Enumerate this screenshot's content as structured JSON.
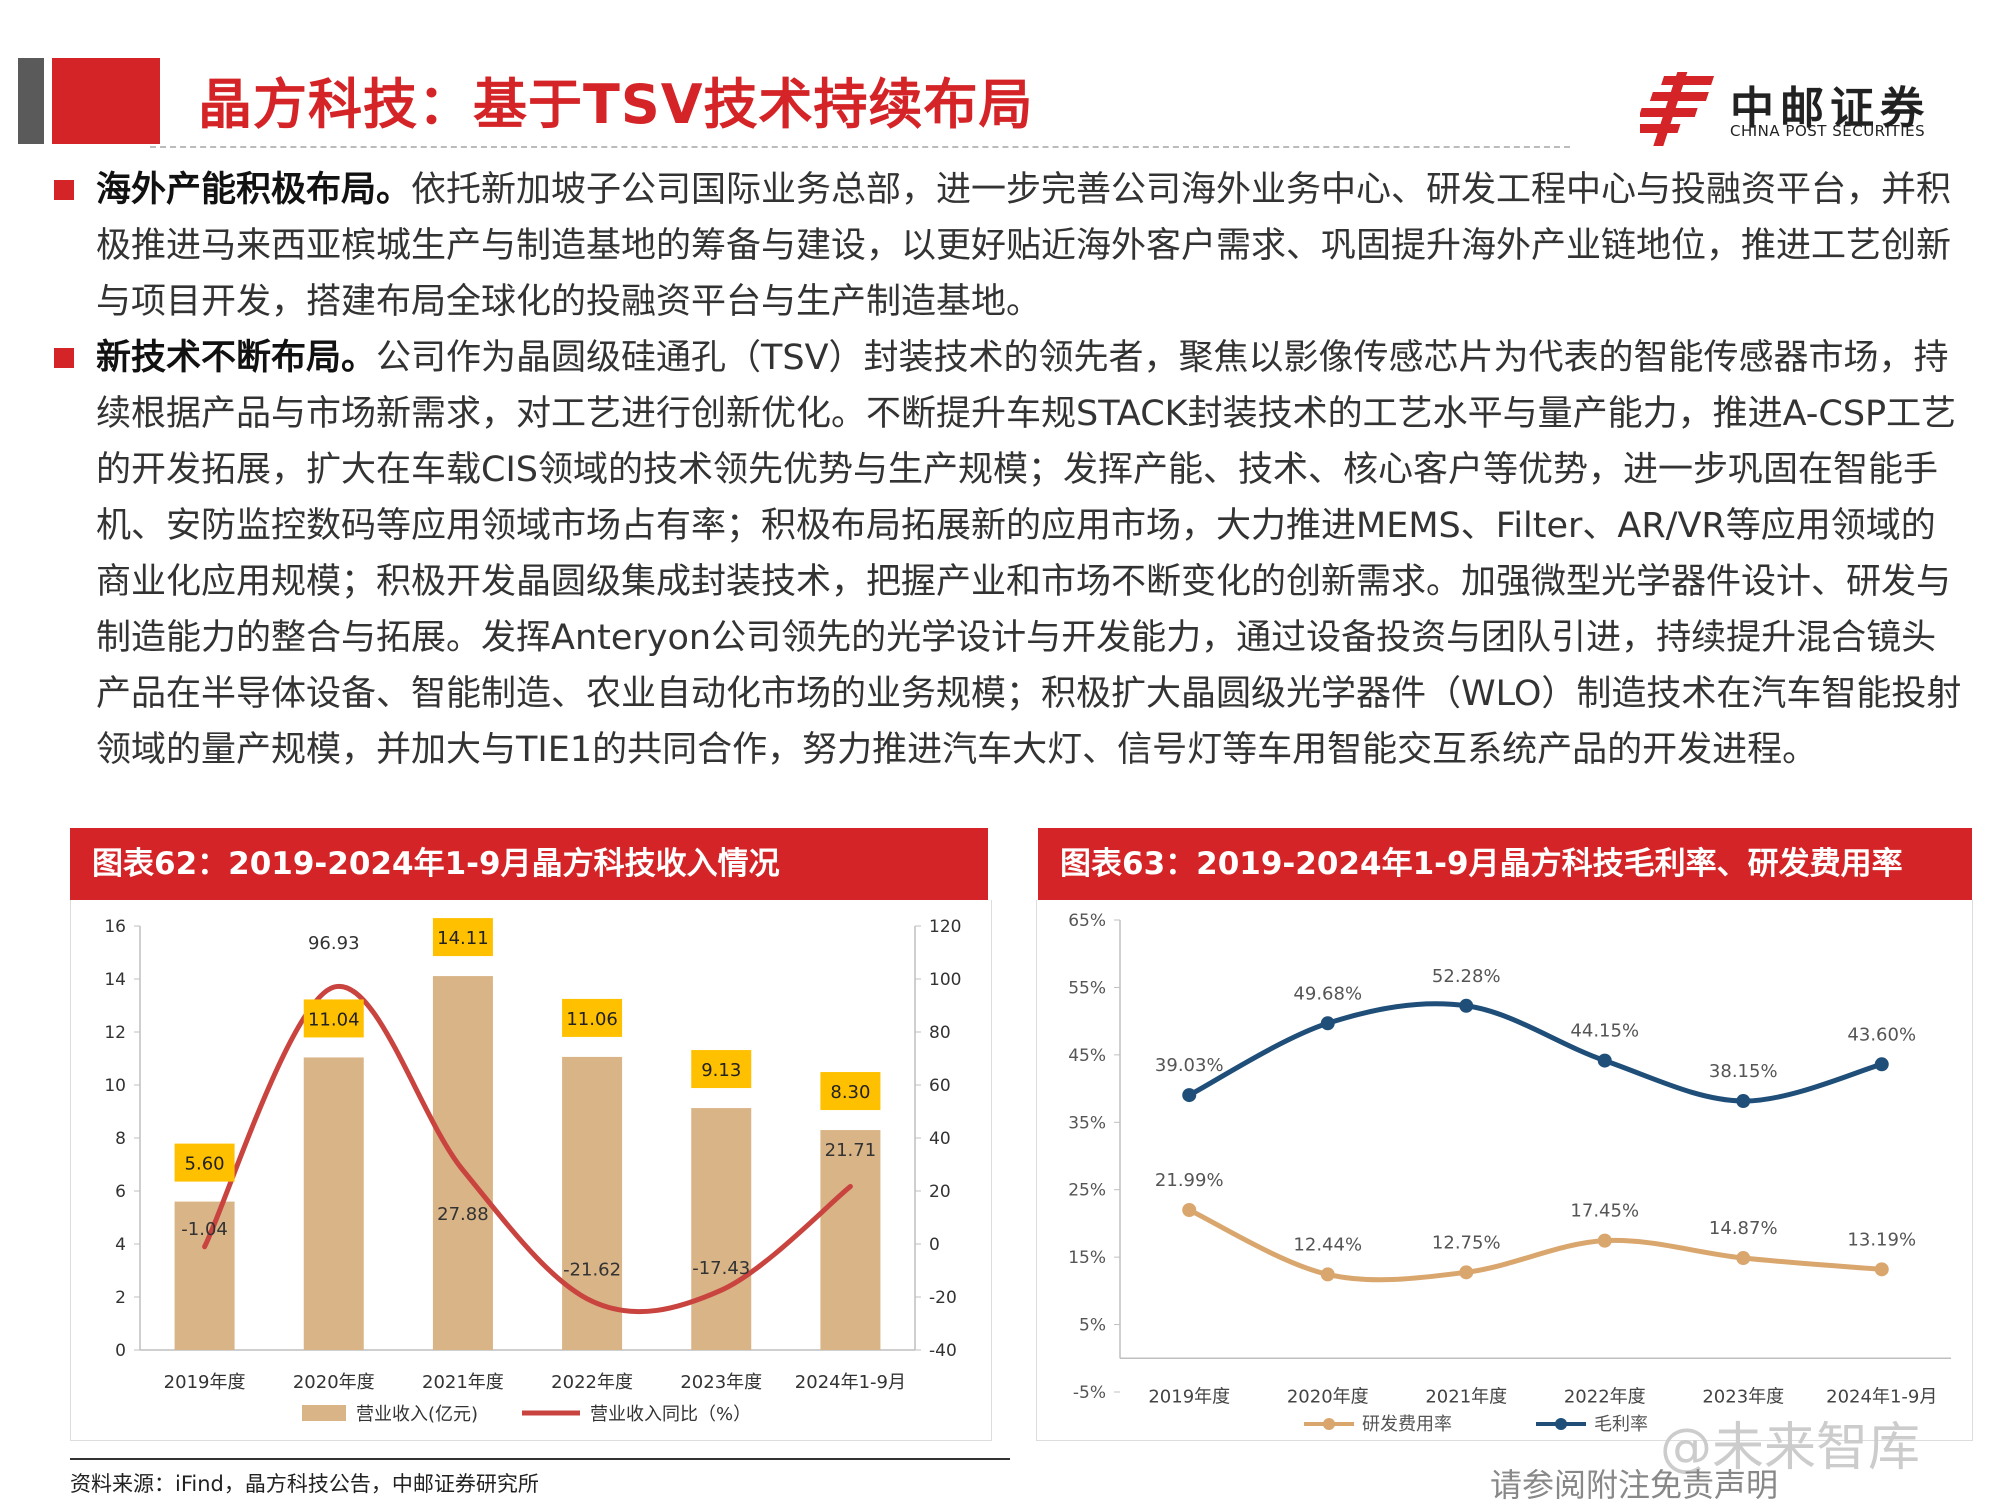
{
  "header": {
    "title": "晶方科技：基于TSV技术持续布局",
    "logo_cn": "中邮证券",
    "logo_en": "CHINA POST SECURITIES",
    "accent_color": "#d42427"
  },
  "paragraphs": [
    {
      "lead": "海外产能积极布局。",
      "text": "依托新加坡子公司国际业务总部，进一步完善公司海外业务中心、研发工程中心与投融资平台，并积极推进马来西亚槟城生产与制造基地的筹备与建设，以更好贴近海外客户需求、巩固提升海外产业链地位，推进工艺创新与项目开发，搭建布局全球化的投融资平台与生产制造基地。"
    },
    {
      "lead": "新技术不断布局。",
      "text": "公司作为晶圆级硅通孔（TSV）封装技术的领先者，聚焦以影像传感芯片为代表的智能传感器市场，持续根据产品与市场新需求，对工艺进行创新优化。不断提升车规STACK封装技术的工艺水平与量产能力，推进A-CSP工艺的开发拓展，扩大在车载CIS领域的技术领先优势与生产规模；发挥产能、技术、核心客户等优势，进一步巩固在智能手机、安防监控数码等应用领域市场占有率；积极布局拓展新的应用市场，大力推进MEMS、Filter、AR/VR等应用领域的商业化应用规模；积极开发晶圆级集成封装技术，把握产业和市场不断变化的创新需求。加强微型光学器件设计、研发与制造能力的整合与拓展。发挥Anteryon公司领先的光学设计与开发能力，通过设备投资与团队引进，持续提升混合镜头产品在半导体设备、智能制造、农业自动化市场的业务规模；积极扩大晶圆级光学器件（WLO）制造技术在汽车智能投射领域的量产规模，并加大与TIE1的共同合作，努力推进汽车大灯、信号灯等车用智能交互系统产品的开发进程。"
    }
  ],
  "chart_data": [
    {
      "type": "bar",
      "title": "图表62：2019-2024年1-9月晶方科技收入情况",
      "categories": [
        "2019年度",
        "2020年度",
        "2021年度",
        "2022年度",
        "2023年度",
        "2024年1-9月"
      ],
      "series": [
        {
          "name": "营业收入(亿元)",
          "kind": "bar",
          "axis": "left",
          "values": [
            5.6,
            11.04,
            14.11,
            11.06,
            9.13,
            8.3
          ],
          "labels": [
            "5.60",
            "11.04",
            "14.11",
            "11.06",
            "9.13",
            "8.30"
          ],
          "color": "#d9b487"
        },
        {
          "name": "营业收入同比（%）",
          "kind": "line",
          "axis": "right",
          "values": [
            -1.04,
            96.93,
            27.88,
            -21.62,
            -17.43,
            21.71
          ],
          "labels": [
            "-1.04",
            "96.93",
            "27.88",
            "-21.62",
            "-17.43",
            "21.71"
          ],
          "color": "#c9433f"
        }
      ],
      "ylim_left": [
        0,
        16
      ],
      "yticks_left": [
        "0",
        "2",
        "4",
        "6",
        "8",
        "10",
        "12",
        "14",
        "16"
      ],
      "ylim_right": [
        -40,
        120
      ],
      "yticks_right": [
        "-40",
        "-20",
        "0",
        "20",
        "40",
        "60",
        "80",
        "100",
        "120"
      ],
      "label_box_color": "#ffc000",
      "legend": "bottom"
    },
    {
      "type": "line",
      "title": "图表63：2019-2024年1-9月晶方科技毛利率、研发费用率",
      "categories": [
        "2019年度",
        "2020年度",
        "2021年度",
        "2022年度",
        "2023年度",
        "2024年1-9月"
      ],
      "series": [
        {
          "name": "研发费用率",
          "values": [
            21.99,
            12.44,
            12.75,
            17.45,
            14.87,
            13.19
          ],
          "labels": [
            "21.99%",
            "12.44%",
            "12.75%",
            "17.45%",
            "14.87%",
            "13.19%"
          ],
          "color": "#d9a66e"
        },
        {
          "name": "毛利率",
          "values": [
            39.03,
            49.68,
            52.28,
            44.15,
            38.15,
            43.6
          ],
          "labels": [
            "39.03%",
            "49.68%",
            "52.28%",
            "44.15%",
            "38.15%",
            "43.60%"
          ],
          "color": "#1f4e79"
        }
      ],
      "ylim": [
        -5,
        65
      ],
      "yticks": [
        "-5%",
        "5%",
        "15%",
        "25%",
        "35%",
        "45%",
        "55%",
        "65%"
      ],
      "legend": "bottom"
    }
  ],
  "footer": {
    "source": "资料来源：iFind，晶方科技公告，中邮证券研究所",
    "disclaimer": "请参阅附注免责声明",
    "watermark": "@未来智库"
  }
}
